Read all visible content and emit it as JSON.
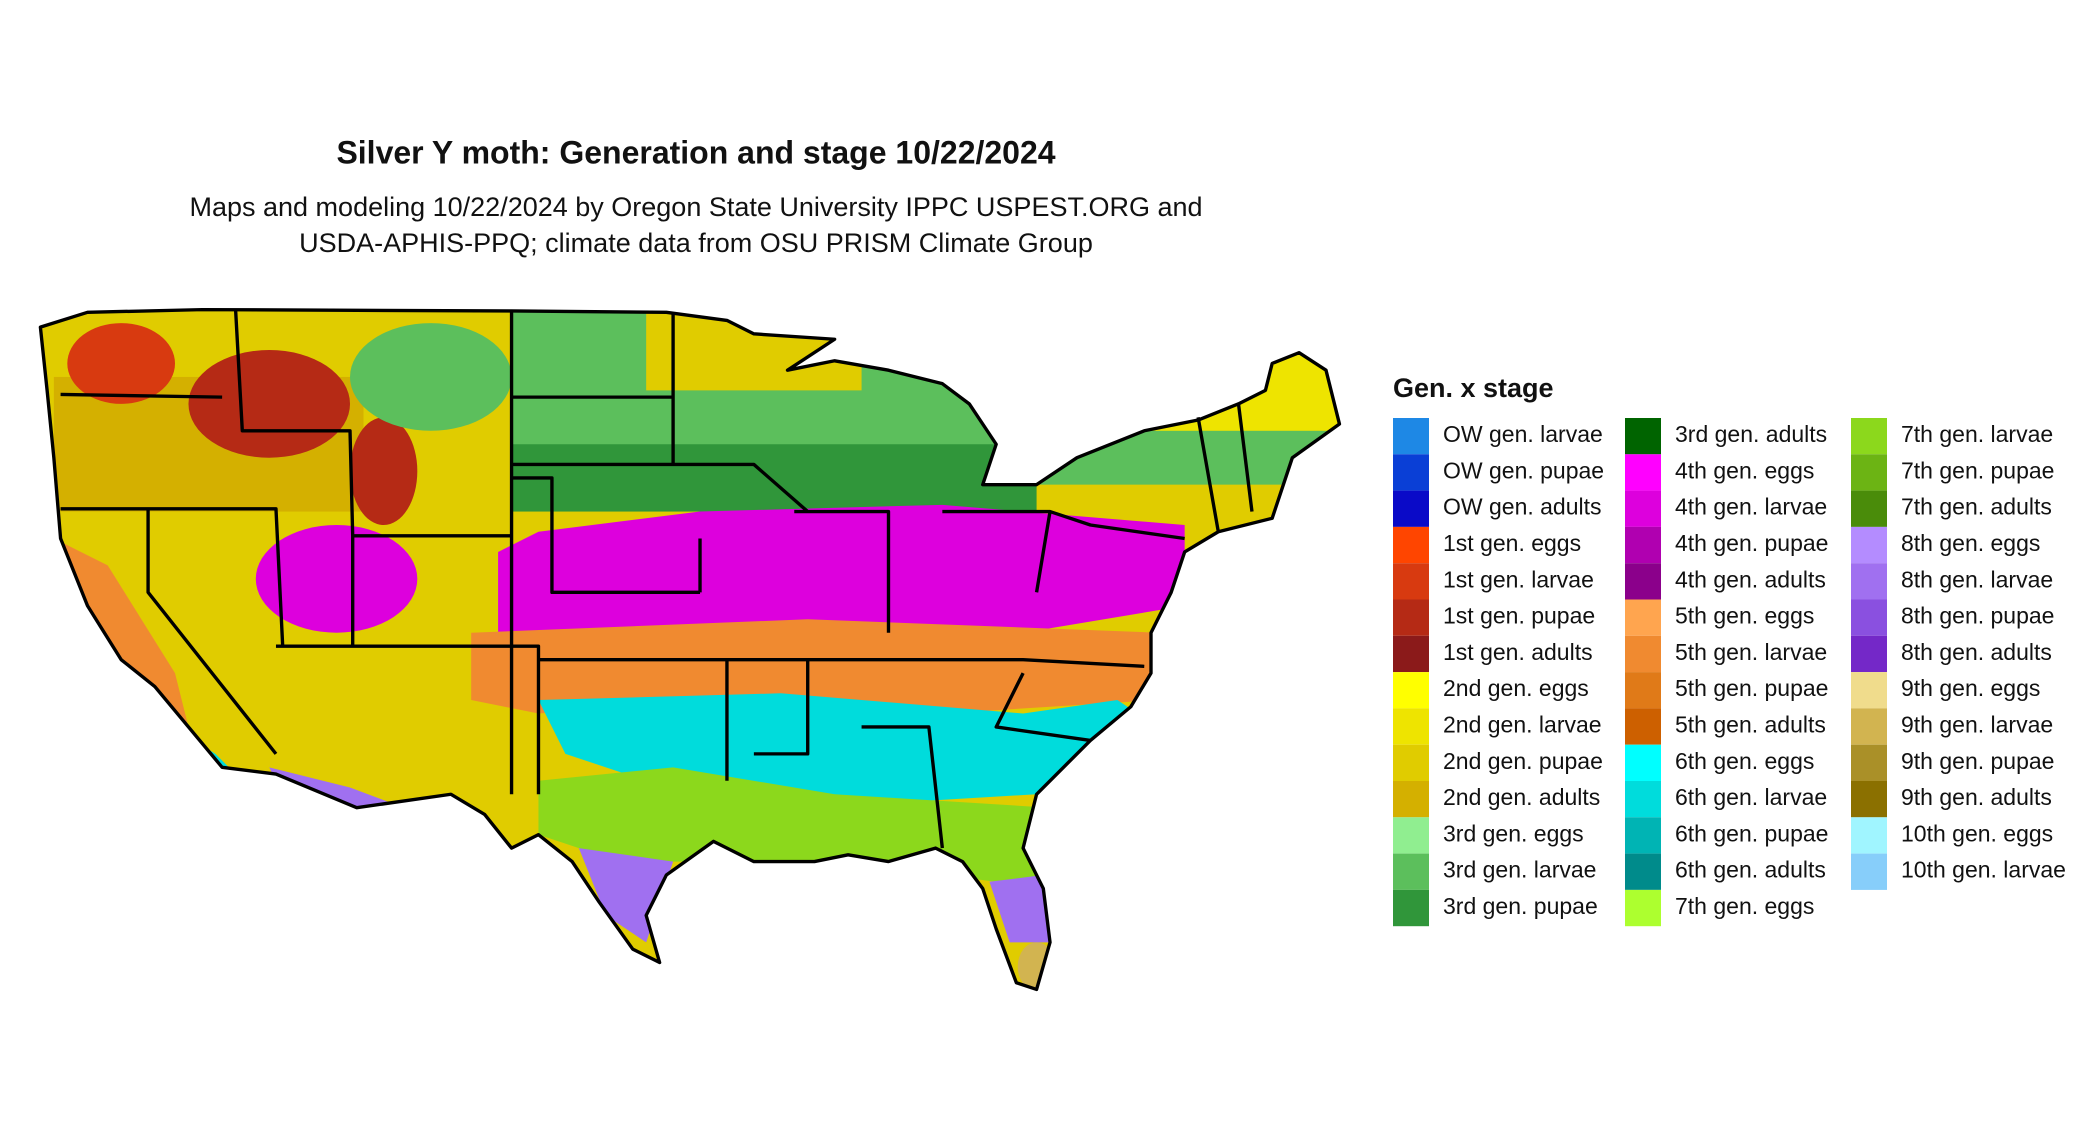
{
  "title": "Silver Y moth: Generation and stage 10/22/2024",
  "subtitle": [
    "Maps and modeling 10/22/2024 by Oregon State University IPPC USPEST.ORG and",
    "USDA-APHIS-PPQ; climate data from OSU PRISM Climate Group"
  ],
  "legend": {
    "title": "Gen. x stage",
    "items": [
      {
        "label": "OW gen. larvae",
        "color": "#1e88e5"
      },
      {
        "label": "OW gen. pupae",
        "color": "#0a3fd6"
      },
      {
        "label": "OW gen. adults",
        "color": "#0a0ac8"
      },
      {
        "label": "1st gen. eggs",
        "color": "#ff4500"
      },
      {
        "label": "1st gen. larvae",
        "color": "#d83a10"
      },
      {
        "label": "1st gen. pupae",
        "color": "#b52a15"
      },
      {
        "label": "1st gen. adults",
        "color": "#8b1a1a"
      },
      {
        "label": "2nd gen. eggs",
        "color": "#ffff00"
      },
      {
        "label": "2nd gen. larvae",
        "color": "#eee400"
      },
      {
        "label": "2nd gen. pupae",
        "color": "#e0cc00"
      },
      {
        "label": "2nd gen. adults",
        "color": "#d4b000"
      },
      {
        "label": "3rd gen. eggs",
        "color": "#90ee90"
      },
      {
        "label": "3rd gen. larvae",
        "color": "#5cbf5c"
      },
      {
        "label": "3rd gen. pupae",
        "color": "#30963a"
      },
      {
        "label": "3rd gen. adults",
        "color": "#006400"
      },
      {
        "label": "4th gen. eggs",
        "color": "#ff00ff"
      },
      {
        "label": "4th gen. larvae",
        "color": "#dd00dd"
      },
      {
        "label": "4th gen. pupae",
        "color": "#b000b0"
      },
      {
        "label": "4th gen. adults",
        "color": "#8b008b"
      },
      {
        "label": "5th gen. eggs",
        "color": "#ffa54f"
      },
      {
        "label": "5th gen. larvae",
        "color": "#f08a30"
      },
      {
        "label": "5th gen. pupae",
        "color": "#e07a18"
      },
      {
        "label": "5th gen. adults",
        "color": "#cd6000"
      },
      {
        "label": "6th gen. eggs",
        "color": "#00ffff"
      },
      {
        "label": "6th gen. larvae",
        "color": "#00dcdc"
      },
      {
        "label": "6th gen. pupae",
        "color": "#00b4b4"
      },
      {
        "label": "6th gen. adults",
        "color": "#008b8b"
      },
      {
        "label": "7th gen. eggs",
        "color": "#adff2f"
      },
      {
        "label": "7th gen. larvae",
        "color": "#8cd81c"
      },
      {
        "label": "7th gen. pupae",
        "color": "#6cb414"
      },
      {
        "label": "7th gen. adults",
        "color": "#4a8c0a"
      },
      {
        "label": "8th gen. eggs",
        "color": "#b48cff"
      },
      {
        "label": "8th gen. larvae",
        "color": "#a070f0"
      },
      {
        "label": "8th gen. pupae",
        "color": "#8a50e0"
      },
      {
        "label": "8th gen. adults",
        "color": "#7428c8"
      },
      {
        "label": "9th gen. eggs",
        "color": "#f0dc8c"
      },
      {
        "label": "9th gen. larvae",
        "color": "#d2b450"
      },
      {
        "label": "9th gen. pupae",
        "color": "#aa9028"
      },
      {
        "label": "9th gen. adults",
        "color": "#8b7000"
      },
      {
        "label": "10th gen. eggs",
        "color": "#a0f5ff"
      },
      {
        "label": "10th gen. larvae",
        "color": "#87cefa"
      }
    ]
  }
}
